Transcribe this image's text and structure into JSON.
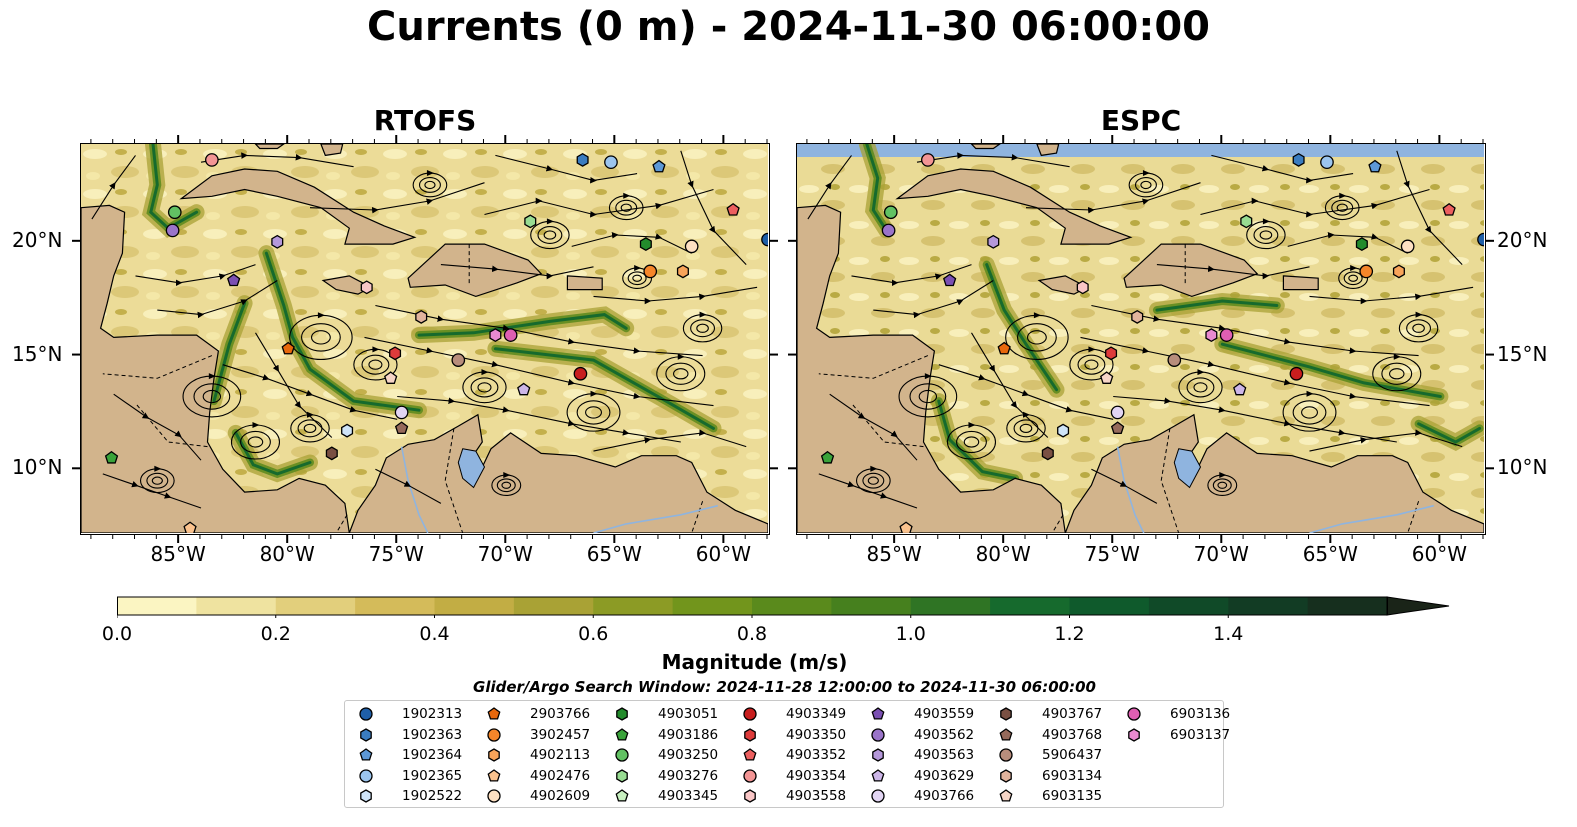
{
  "title": "Currents (0 m) - 2024-11-30 06:00:00",
  "panels": [
    {
      "title": "RTOFS"
    },
    {
      "title": "ESPC"
    }
  ],
  "axes": {
    "lon_ticks": [
      "85°W",
      "80°W",
      "75°W",
      "70°W",
      "65°W",
      "60°W"
    ],
    "lat_ticks": [
      "20°N",
      "15°N",
      "10°N"
    ],
    "lon_values": [
      -85,
      -80,
      -75,
      -70,
      -65,
      -60
    ],
    "lat_values": [
      20,
      15,
      10
    ],
    "lon_range": [
      -89.5,
      -58.0
    ],
    "lat_range": [
      7.2,
      24.3
    ]
  },
  "colorbar": {
    "label": "Magnitude (m/s)",
    "ticks": [
      "0.0",
      "0.2",
      "0.4",
      "0.6",
      "0.8",
      "1.0",
      "1.2",
      "1.4"
    ],
    "tick_values": [
      0,
      0.2,
      0.4,
      0.6,
      0.8,
      1.0,
      1.2,
      1.4
    ],
    "range": [
      0,
      1.6
    ],
    "extend": "max",
    "colors": [
      "#fbf5c2",
      "#efe3a0",
      "#e2cf7c",
      "#d4bb5a",
      "#c2ad44",
      "#a9a235",
      "#8c9b25",
      "#72951c",
      "#5a8a1c",
      "#46801e",
      "#2f7424",
      "#166a2d",
      "#0f5a2c",
      "#104a28",
      "#123c24",
      "#162f1e",
      "#1a2418"
    ]
  },
  "search_window": "Glider/Argo Search Window: 2024-11-28 12:00:00 to 2024-11-30 06:00:00",
  "colors": {
    "land": "#d2b48c",
    "water_lake": "#8fb4df",
    "streamline": "#000000"
  },
  "legend": [
    {
      "id": "1902313",
      "marker": "circle",
      "color": "#1f5fa8"
    },
    {
      "id": "1902363",
      "marker": "hexagon",
      "color": "#3a7cc0"
    },
    {
      "id": "1902364",
      "marker": "pentagon",
      "color": "#5d98d6"
    },
    {
      "id": "1902365",
      "marker": "circle",
      "color": "#9cc5ee"
    },
    {
      "id": "1902522",
      "marker": "hexagon",
      "color": "#cfe4f8"
    },
    {
      "id": "2903766",
      "marker": "pentagon",
      "color": "#e8680c"
    },
    {
      "id": "3902457",
      "marker": "circle",
      "color": "#f5862a"
    },
    {
      "id": "4902113",
      "marker": "hexagon",
      "color": "#f8a45a"
    },
    {
      "id": "4902476",
      "marker": "pentagon",
      "color": "#fbc38e"
    },
    {
      "id": "4902609",
      "marker": "circle",
      "color": "#fde0c2"
    },
    {
      "id": "4903051",
      "marker": "hexagon",
      "color": "#238b2c"
    },
    {
      "id": "4903186",
      "marker": "pentagon",
      "color": "#3aa33a"
    },
    {
      "id": "4903250",
      "marker": "circle",
      "color": "#62c163"
    },
    {
      "id": "4903276",
      "marker": "hexagon",
      "color": "#98dc92"
    },
    {
      "id": "4903345",
      "marker": "pentagon",
      "color": "#c8f0c0"
    },
    {
      "id": "4903349",
      "marker": "circle",
      "color": "#c81e1e"
    },
    {
      "id": "4903350",
      "marker": "hexagon",
      "color": "#de3b3b"
    },
    {
      "id": "4903352",
      "marker": "pentagon",
      "color": "#ec5f5f"
    },
    {
      "id": "4903354",
      "marker": "circle",
      "color": "#f39595"
    },
    {
      "id": "4903558",
      "marker": "hexagon",
      "color": "#f9c6c6"
    },
    {
      "id": "4903559",
      "marker": "pentagon",
      "color": "#7b50b3"
    },
    {
      "id": "4903562",
      "marker": "circle",
      "color": "#9a74c9"
    },
    {
      "id": "4903563",
      "marker": "hexagon",
      "color": "#b598da"
    },
    {
      "id": "4903629",
      "marker": "pentagon",
      "color": "#cdb6e8"
    },
    {
      "id": "4903766",
      "marker": "circle",
      "color": "#e2d5f3"
    },
    {
      "id": "4903767",
      "marker": "hexagon",
      "color": "#7a5043"
    },
    {
      "id": "4903768",
      "marker": "pentagon",
      "color": "#966a5b"
    },
    {
      "id": "5906437",
      "marker": "circle",
      "color": "#b88d7c"
    },
    {
      "id": "6903134",
      "marker": "hexagon",
      "color": "#e2b49d"
    },
    {
      "id": "6903135",
      "marker": "pentagon",
      "color": "#f6d5c7"
    },
    {
      "id": "6903136",
      "marker": "circle",
      "color": "#df5fb2"
    },
    {
      "id": "6903137",
      "marker": "hexagon",
      "color": "#e98ad0"
    }
  ],
  "floats_rtofs": [
    {
      "id": "1902313",
      "lon": -58.0,
      "lat": 20.1
    },
    {
      "id": "1902363",
      "lon": -66.5,
      "lat": 23.6
    },
    {
      "id": "1902365",
      "lon": -65.2,
      "lat": 23.5
    },
    {
      "id": "1902364",
      "lon": -63.0,
      "lat": 23.3
    },
    {
      "id": "4903354",
      "lon": -83.5,
      "lat": 23.6
    },
    {
      "id": "4903250",
      "lon": -85.2,
      "lat": 21.3
    },
    {
      "id": "4903562",
      "lon": -85.3,
      "lat": 20.5
    },
    {
      "id": "4903563",
      "lon": -80.5,
      "lat": 20.0
    },
    {
      "id": "4903559",
      "lon": -82.5,
      "lat": 18.3
    },
    {
      "id": "4903276",
      "lon": -68.9,
      "lat": 20.9
    },
    {
      "id": "4903051",
      "lon": -63.6,
      "lat": 19.9
    },
    {
      "id": "4902609",
      "lon": -61.5,
      "lat": 19.8
    },
    {
      "id": "4903352",
      "lon": -59.6,
      "lat": 21.4
    },
    {
      "id": "3902457",
      "lon": -63.4,
      "lat": 18.7
    },
    {
      "id": "4902113",
      "lon": -61.9,
      "lat": 18.7
    },
    {
      "id": "4903558",
      "lon": -76.4,
      "lat": 18.0
    },
    {
      "id": "6903134",
      "lon": -73.9,
      "lat": 16.7
    },
    {
      "id": "6903137",
      "lon": -70.5,
      "lat": 15.9
    },
    {
      "id": "6903136",
      "lon": -69.8,
      "lat": 15.9
    },
    {
      "id": "2903766",
      "lon": -80.0,
      "lat": 15.3
    },
    {
      "id": "4903350",
      "lon": -75.1,
      "lat": 15.1
    },
    {
      "id": "5906437",
      "lon": -72.2,
      "lat": 14.8
    },
    {
      "id": "4903349",
      "lon": -66.6,
      "lat": 14.2
    },
    {
      "id": "6903135",
      "lon": -75.3,
      "lat": 14.0
    },
    {
      "id": "4903629",
      "lon": -69.2,
      "lat": 13.5
    },
    {
      "id": "4903766",
      "lon": -74.8,
      "lat": 12.5
    },
    {
      "id": "1902522",
      "lon": -77.3,
      "lat": 11.7
    },
    {
      "id": "4903768",
      "lon": -74.8,
      "lat": 11.8
    },
    {
      "id": "4903767",
      "lon": -78.0,
      "lat": 10.7
    },
    {
      "id": "4903186",
      "lon": -88.1,
      "lat": 10.5
    },
    {
      "id": "4902476",
      "lon": -84.5,
      "lat": 7.4
    }
  ],
  "floats_espc": [
    {
      "id": "1902313",
      "lon": -58.0,
      "lat": 20.1
    },
    {
      "id": "1902363",
      "lon": -66.5,
      "lat": 23.6
    },
    {
      "id": "1902365",
      "lon": -65.2,
      "lat": 23.5
    },
    {
      "id": "1902364",
      "lon": -63.0,
      "lat": 23.3
    },
    {
      "id": "4903354",
      "lon": -83.5,
      "lat": 23.6
    },
    {
      "id": "4903250",
      "lon": -85.2,
      "lat": 21.3
    },
    {
      "id": "4903562",
      "lon": -85.3,
      "lat": 20.5
    },
    {
      "id": "4903563",
      "lon": -80.5,
      "lat": 20.0
    },
    {
      "id": "4903559",
      "lon": -82.5,
      "lat": 18.3
    },
    {
      "id": "4903276",
      "lon": -68.9,
      "lat": 20.9
    },
    {
      "id": "4903051",
      "lon": -63.6,
      "lat": 19.9
    },
    {
      "id": "4902609",
      "lon": -61.5,
      "lat": 19.8
    },
    {
      "id": "4903352",
      "lon": -59.6,
      "lat": 21.4
    },
    {
      "id": "3902457",
      "lon": -63.4,
      "lat": 18.7
    },
    {
      "id": "4902113",
      "lon": -61.9,
      "lat": 18.7
    },
    {
      "id": "4903558",
      "lon": -76.4,
      "lat": 18.0
    },
    {
      "id": "6903134",
      "lon": -73.9,
      "lat": 16.7
    },
    {
      "id": "6903137",
      "lon": -70.5,
      "lat": 15.9
    },
    {
      "id": "6903136",
      "lon": -69.8,
      "lat": 15.9
    },
    {
      "id": "2903766",
      "lon": -80.0,
      "lat": 15.3
    },
    {
      "id": "4903350",
      "lon": -75.1,
      "lat": 15.1
    },
    {
      "id": "5906437",
      "lon": -72.2,
      "lat": 14.8
    },
    {
      "id": "4903349",
      "lon": -66.6,
      "lat": 14.2
    },
    {
      "id": "6903135",
      "lon": -75.3,
      "lat": 14.0
    },
    {
      "id": "4903629",
      "lon": -69.2,
      "lat": 13.5
    },
    {
      "id": "4903766",
      "lon": -74.8,
      "lat": 12.5
    },
    {
      "id": "1902522",
      "lon": -77.3,
      "lat": 11.7
    },
    {
      "id": "4903768",
      "lon": -74.8,
      "lat": 11.8
    },
    {
      "id": "4903767",
      "lon": -78.0,
      "lat": 10.7
    },
    {
      "id": "4903186",
      "lon": -88.1,
      "lat": 10.5
    },
    {
      "id": "4902476",
      "lon": -84.5,
      "lat": 7.4
    }
  ]
}
